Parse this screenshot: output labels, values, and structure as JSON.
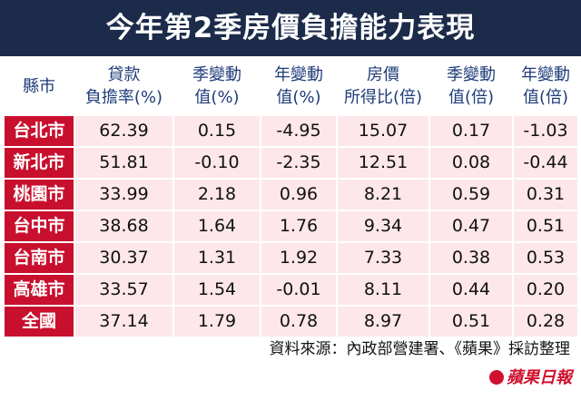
{
  "title": "今年第2季房價負擔能力表現",
  "table": {
    "header": [
      [
        "縣市"
      ],
      [
        "貸款",
        "負擔率(%)"
      ],
      [
        "季變動",
        "值(%)"
      ],
      [
        "年變動",
        "值(%)"
      ],
      [
        "房價",
        "所得比(倍)"
      ],
      [
        "季變動",
        "值(倍)"
      ],
      [
        "年變動",
        "值(倍)"
      ]
    ],
    "rows": [
      [
        "台北市",
        "62.39",
        "0.15",
        "-4.95",
        "15.07",
        "0.17",
        "-1.03"
      ],
      [
        "新北市",
        "51.81",
        "-0.10",
        "-2.35",
        "12.51",
        "0.08",
        "-0.44"
      ],
      [
        "桃園市",
        "33.99",
        "2.18",
        "0.96",
        "8.21",
        "0.59",
        "0.31"
      ],
      [
        "台中市",
        "38.68",
        "1.64",
        "1.76",
        "9.34",
        "0.47",
        "0.51"
      ],
      [
        "台南市",
        "30.37",
        "1.31",
        "1.92",
        "7.33",
        "0.38",
        "0.53"
      ],
      [
        "高雄市",
        "33.57",
        "1.54",
        "-0.01",
        "8.11",
        "0.44",
        "0.20"
      ],
      [
        "全國",
        "37.14",
        "1.79",
        "0.78",
        "8.97",
        "0.51",
        "0.28"
      ]
    ]
  },
  "source": "資料來源：內政部營建署、《蘋果》採訪整理",
  "logo": "蘋果日報"
}
